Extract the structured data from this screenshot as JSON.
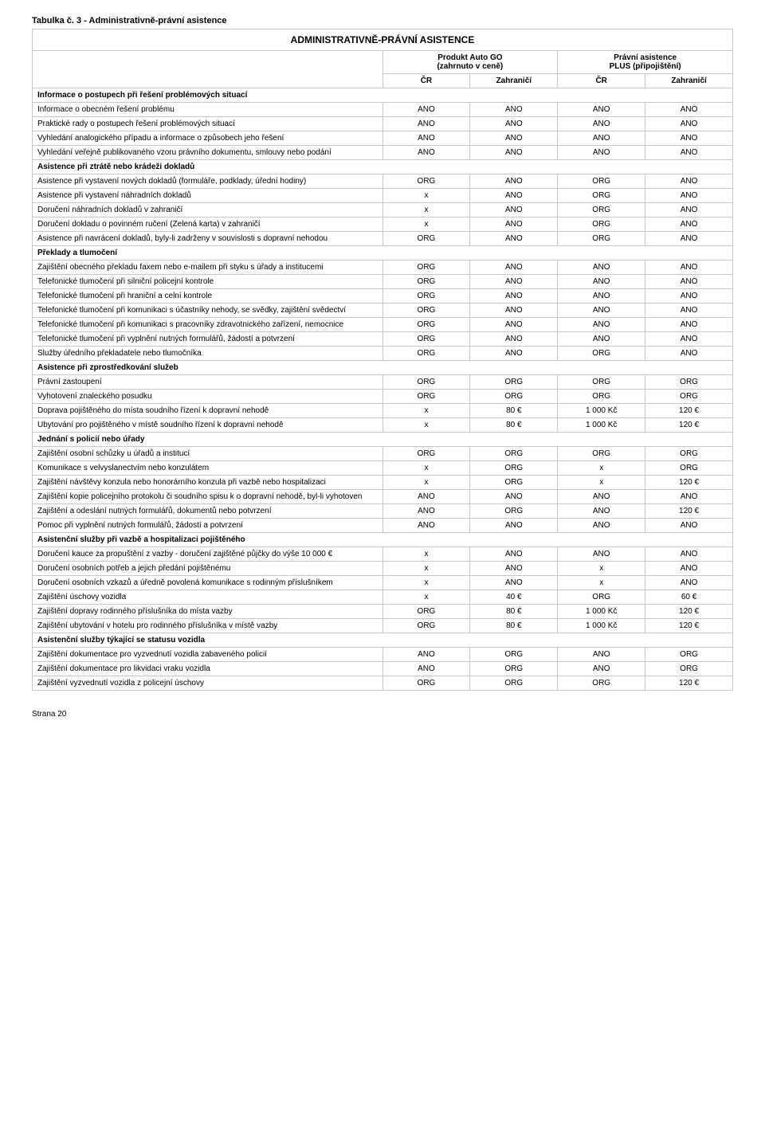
{
  "table_caption": "Tabulka č. 3 - Administrativně-právní asistence",
  "main_header": "ADMINISTRATIVNĚ-PRÁVNÍ ASISTENCE",
  "group_headers": {
    "product": "Produkt Auto GO\n(zahrnuto v ceně)",
    "plus": "Právní asistence\nPLUS (připojištění)"
  },
  "sub_headers": {
    "cr": "ČR",
    "zahr": "Zahraničí"
  },
  "footer": "Strana 20",
  "rows": [
    {
      "type": "section",
      "label": "Informace o postupech při řešení problémových situací"
    },
    {
      "type": "data",
      "label": "Informace o obecném řešení problému",
      "c": [
        "ANO",
        "ANO",
        "ANO",
        "ANO"
      ]
    },
    {
      "type": "data",
      "label": "Praktické rady o postupech řešení problémových situací",
      "c": [
        "ANO",
        "ANO",
        "ANO",
        "ANO"
      ]
    },
    {
      "type": "data",
      "label": "Vyhledání analogického případu a informace o způsobech jeho řešení",
      "c": [
        "ANO",
        "ANO",
        "ANO",
        "ANO"
      ]
    },
    {
      "type": "data",
      "label": "Vyhledání veřejně publikovaného vzoru právního dokumentu, smlouvy nebo podání",
      "c": [
        "ANO",
        "ANO",
        "ANO",
        "ANO"
      ]
    },
    {
      "type": "section",
      "label": "Asistence při ztrátě nebo krádeži dokladů"
    },
    {
      "type": "data",
      "label": "Asistence při vystavení nových dokladů (formuláře, podklady, úřední hodiny)",
      "c": [
        "ORG",
        "ANO",
        "ORG",
        "ANO"
      ]
    },
    {
      "type": "data",
      "label": "Asistence při vystavení náhradních dokladů",
      "c": [
        "x",
        "ANO",
        "ORG",
        "ANO"
      ]
    },
    {
      "type": "data",
      "label": "Doručení náhradních dokladů v zahraničí",
      "c": [
        "x",
        "ANO",
        "ORG",
        "ANO"
      ]
    },
    {
      "type": "data",
      "label": "Doručení dokladu o povinném ručení (Zelená karta) v zahraničí",
      "c": [
        "x",
        "ANO",
        "ORG",
        "ANO"
      ]
    },
    {
      "type": "data",
      "label": "Asistence při navrácení dokladů, byly-li zadrženy v souvislosti s dopravní nehodou",
      "c": [
        "ORG",
        "ANO",
        "ORG",
        "ANO"
      ]
    },
    {
      "type": "section",
      "label": "Překlady a tlumočení"
    },
    {
      "type": "data",
      "label": "Zajištění obecného překladu faxem nebo e-mailem při styku s úřady a institucemi",
      "c": [
        "ORG",
        "ANO",
        "ANO",
        "ANO"
      ]
    },
    {
      "type": "data",
      "label": "Telefonické tlumočení při silniční policejní kontrole",
      "c": [
        "ORG",
        "ANO",
        "ANO",
        "ANO"
      ]
    },
    {
      "type": "data",
      "label": "Telefonické tlumočení při hraniční a celní kontrole",
      "c": [
        "ORG",
        "ANO",
        "ANO",
        "ANO"
      ]
    },
    {
      "type": "data",
      "label": "Telefonické tlumočení při komunikaci s účastníky nehody, se svědky, zajištění svědectví",
      "c": [
        "ORG",
        "ANO",
        "ANO",
        "ANO"
      ]
    },
    {
      "type": "data",
      "label": "Telefonické tlumočení při komunikaci s pracovníky zdravotnického zařízení, nemocnice",
      "c": [
        "ORG",
        "ANO",
        "ANO",
        "ANO"
      ]
    },
    {
      "type": "data",
      "label": "Telefonické tlumočení při vyplnění nutných formulářů, žádostí a potvrzení",
      "c": [
        "ORG",
        "ANO",
        "ANO",
        "ANO"
      ]
    },
    {
      "type": "data",
      "label": "Služby úředního překladatele nebo tlumočníka",
      "c": [
        "ORG",
        "ANO",
        "ORG",
        "ANO"
      ]
    },
    {
      "type": "section",
      "label": "Asistence při zprostředkování služeb"
    },
    {
      "type": "data",
      "label": "Právní zastoupení",
      "c": [
        "ORG",
        "ORG",
        "ORG",
        "ORG"
      ]
    },
    {
      "type": "data",
      "label": "Vyhotovení znaleckého posudku",
      "c": [
        "ORG",
        "ORG",
        "ORG",
        "ORG"
      ]
    },
    {
      "type": "data",
      "label": "Doprava pojištěného do místa soudního řízení k dopravní nehodě",
      "c": [
        "x",
        "80 €",
        "1 000 Kč",
        "120 €"
      ]
    },
    {
      "type": "data",
      "label": "Ubytování pro pojištěného v místě soudního řízení k dopravní nehodě",
      "c": [
        "x",
        "80 €",
        "1 000 Kč",
        "120 €"
      ]
    },
    {
      "type": "section",
      "label": "Jednání s policií nebo úřady"
    },
    {
      "type": "data",
      "label": "Zajištění osobní schůzky u úřadů a institucí",
      "c": [
        "ORG",
        "ORG",
        "ORG",
        "ORG"
      ]
    },
    {
      "type": "data",
      "label": "Komunikace s velvyslanectvím nebo konzulátem",
      "c": [
        "x",
        "ORG",
        "x",
        "ORG"
      ]
    },
    {
      "type": "data",
      "label": "Zajištění návštěvy konzula nebo honorárního konzula při vazbě nebo hospitalizaci",
      "c": [
        "x",
        "ORG",
        "x",
        "120 €"
      ]
    },
    {
      "type": "data",
      "label": "Zajištění kopie policejního protokolu či soudního spisu k o dopravní nehodě, byl-li vyhotoven",
      "c": [
        "ANO",
        "ANO",
        "ANO",
        "ANO"
      ]
    },
    {
      "type": "data",
      "label": "Zajištění a odeslání nutných formulářů, dokumentů nebo potvrzení",
      "c": [
        "ANO",
        "ORG",
        "ANO",
        "120 €"
      ]
    },
    {
      "type": "data",
      "label": "Pomoc při vyplnění nutných formulářů, žádostí a potvrzení",
      "c": [
        "ANO",
        "ANO",
        "ANO",
        "ANO"
      ]
    },
    {
      "type": "section",
      "label": "Asistenční služby při vazbě a hospitalizaci pojištěného"
    },
    {
      "type": "data",
      "label": "Doručení kauce za propuštění z vazby - doručení zajištěné půjčky do výše 10 000 €",
      "c": [
        "x",
        "ANO",
        "ANO",
        "ANO"
      ]
    },
    {
      "type": "data",
      "label": "Doručení osobních potřeb a jejich předání pojištěnému",
      "c": [
        "x",
        "ANO",
        "x",
        "ANO"
      ]
    },
    {
      "type": "data",
      "label": "Doručení osobních vzkazů a úředně povolená komunikace s rodinným příslušníkem",
      "c": [
        "x",
        "ANO",
        "x",
        "ANO"
      ]
    },
    {
      "type": "data",
      "label": "Zajištění úschovy vozidla",
      "c": [
        "x",
        "40 €",
        "ORG",
        "60 €"
      ]
    },
    {
      "type": "data",
      "label": "Zajištění dopravy rodinného příslušníka do místa vazby",
      "c": [
        "ORG",
        "80 €",
        "1 000 Kč",
        "120 €"
      ]
    },
    {
      "type": "data",
      "label": "Zajištění ubytování v hotelu pro rodinného příslušníka v místě vazby",
      "c": [
        "ORG",
        "80 €",
        "1 000 Kč",
        "120 €"
      ]
    },
    {
      "type": "section",
      "label": "Asistenční služby týkající se statusu vozidla"
    },
    {
      "type": "data",
      "label": "Zajištění dokumentace pro vyzvednutí vozidla zabaveného policií",
      "c": [
        "ANO",
        "ORG",
        "ANO",
        "ORG"
      ]
    },
    {
      "type": "data",
      "label": "Zajištění dokumentace pro likvidaci vraku vozidla",
      "c": [
        "ANO",
        "ORG",
        "ANO",
        "ORG"
      ]
    },
    {
      "type": "data",
      "label": "Zajištění vyzvednutí vozidla z policejní úschovy",
      "c": [
        "ORG",
        "ORG",
        "ORG",
        "120 €"
      ]
    }
  ],
  "col_widths": {
    "label": "50%",
    "val": "12.5%"
  }
}
